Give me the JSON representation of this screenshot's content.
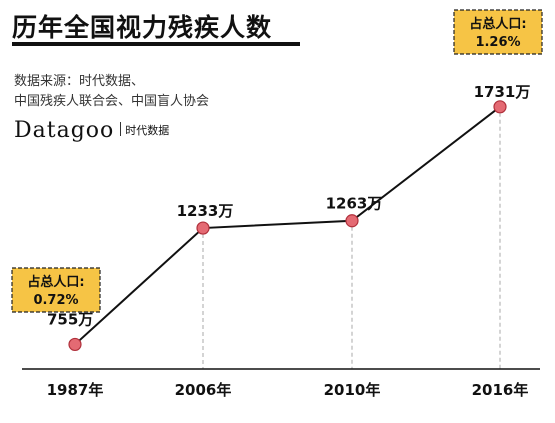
{
  "header": {
    "title": "历年全国视力残疾人数",
    "source_line1": "数据来源：时代数据、",
    "source_line2": "中国残疾人联合会、中国盲人协会",
    "logo_main": "Datagoo",
    "logo_sub": "时代数据"
  },
  "chart_data": {
    "type": "line",
    "categories": [
      "1987年",
      "2006年",
      "2010年",
      "2016年"
    ],
    "values": [
      755,
      1233,
      1263,
      1731
    ],
    "value_labels": [
      "755万",
      "1233万",
      "1263万",
      "1731万"
    ],
    "ylim": [
      650,
      1800
    ],
    "annotations": [
      {
        "category": "1987年",
        "line1": "占总人口:",
        "line2": "0.72%"
      },
      {
        "category": "2016年",
        "line1": "占总人口:",
        "line2": "1.26%"
      }
    ],
    "colors": {
      "line": "#111111",
      "marker_fill": "#e46a73",
      "marker_stroke": "#b0303b",
      "callout_fill": "#f6c445",
      "dash": "#aaaaaa"
    }
  }
}
